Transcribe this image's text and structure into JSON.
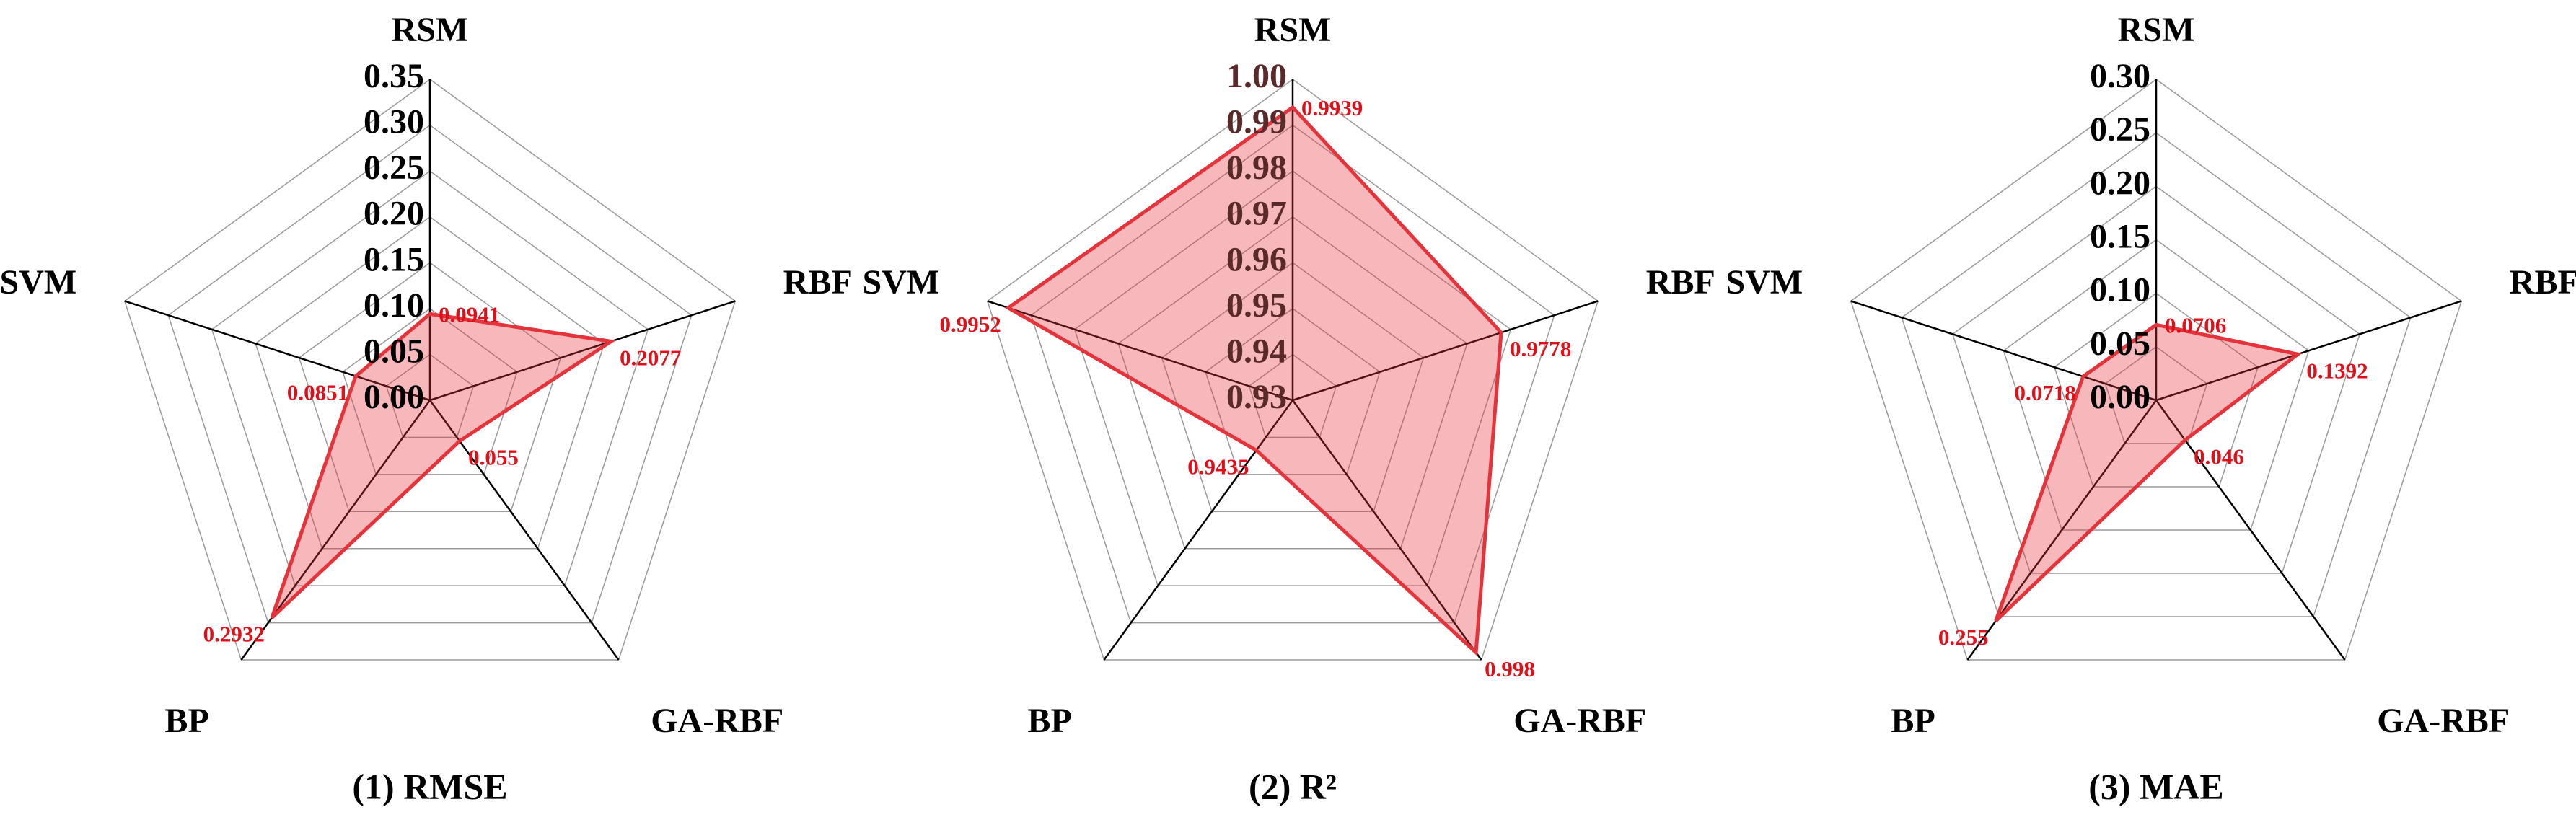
{
  "chart_data": [
    {
      "type": "radar",
      "title": "(1)  RMSE",
      "categories": [
        "RSM",
        "RBF",
        "GA-RBF",
        "BP",
        "SVM"
      ],
      "values": [
        0.0941,
        0.2077,
        0.055,
        0.2932,
        0.0851
      ],
      "color": "#e5333b",
      "ylim": [
        0,
        0.35
      ],
      "yticks": [
        {
          "value": 0,
          "label": "0.00"
        },
        0.05,
        {
          "value": 0.1,
          "label": "0.10"
        },
        0.15,
        {
          "value": 0.2,
          "label": "0.20"
        },
        0.25,
        {
          "value": 0.3,
          "label": "0.30"
        },
        0.35
      ],
      "grid": true
    },
    {
      "type": "radar",
      "title": "(2)  R²",
      "categories": [
        "RSM",
        "RBF",
        "GA-RBF",
        "BP",
        "SVM"
      ],
      "values": [
        0.9939,
        0.9778,
        0.998,
        0.9435,
        0.9952
      ],
      "color": "#e5333b",
      "ylim": [
        0.93,
        1.0
      ],
      "yticks": [
        0.93,
        0.94,
        0.95,
        0.96,
        0.97,
        0.98,
        0.99,
        {
          "value": 1.0,
          "label": "1.00"
        }
      ],
      "grid": true
    },
    {
      "type": "radar",
      "title": "(3)  MAE",
      "categories": [
        "RSM",
        "RBF",
        "GA-RBF",
        "BP",
        "SVM"
      ],
      "values": [
        0.0706,
        0.1392,
        0.046,
        0.255,
        0.0718
      ],
      "color": "#e5333b",
      "ylim": [
        0,
        0.3
      ],
      "yticks": [
        {
          "value": 0,
          "label": "0.00"
        },
        0.05,
        {
          "value": 0.1,
          "label": "0.10"
        },
        0.15,
        {
          "value": 0.2,
          "label": "0.20"
        },
        0.25,
        {
          "value": 0.3,
          "label": "0.30"
        }
      ],
      "grid": true
    }
  ]
}
